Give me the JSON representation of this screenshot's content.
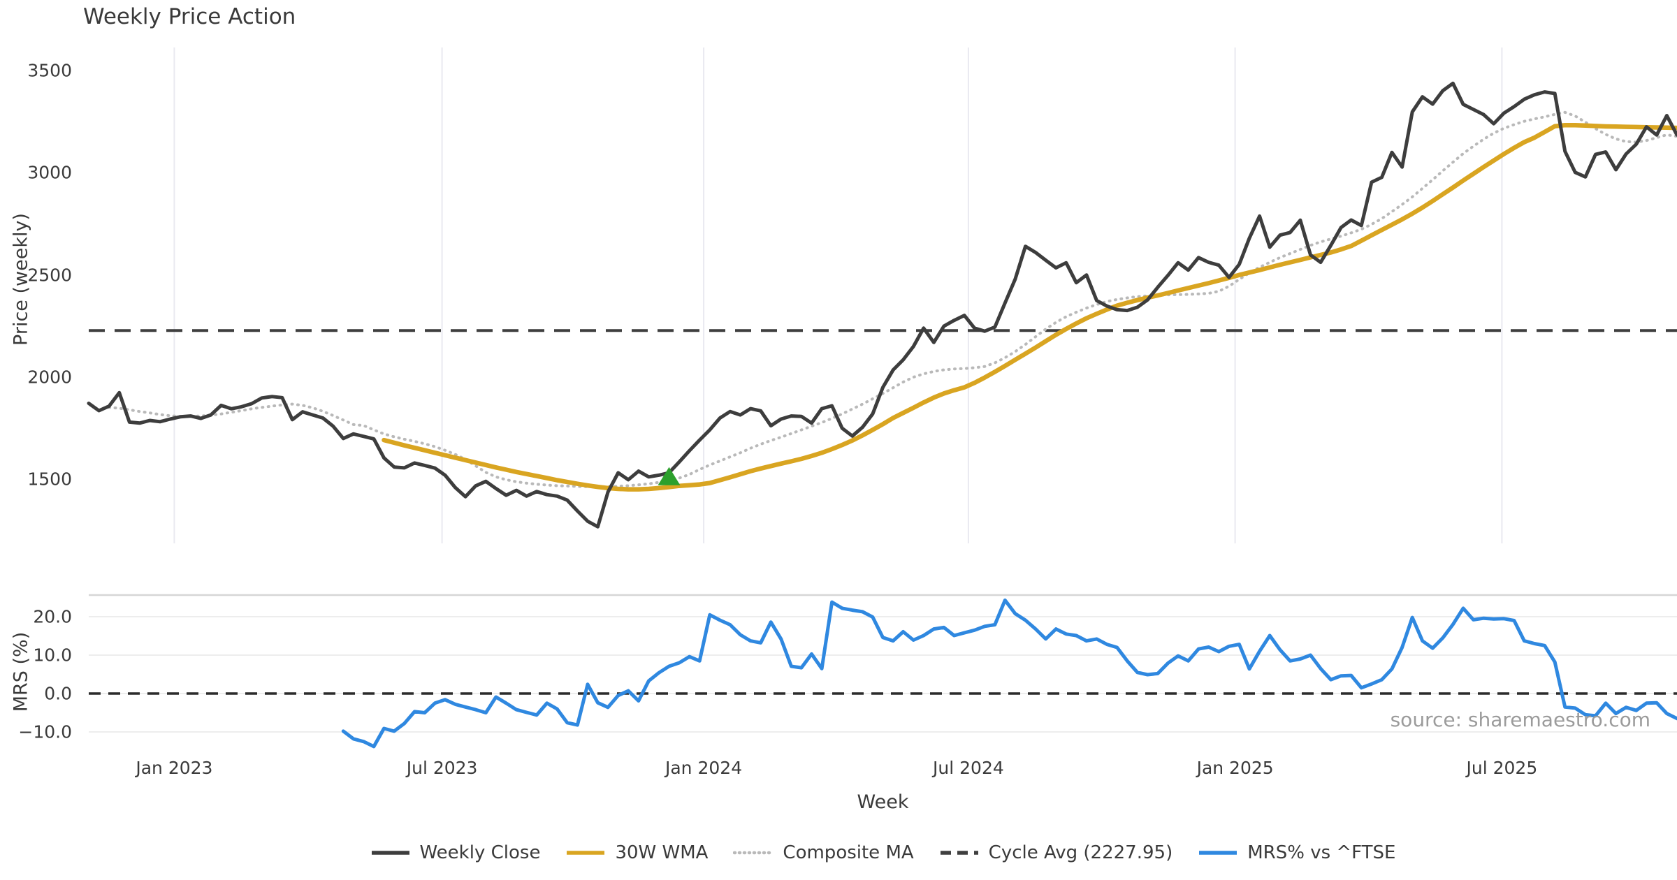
{
  "title": "Weekly Price Action",
  "source_note": "source: sharemaestro.com",
  "colors": {
    "text": "#3a3a3a",
    "close_line": "#3d3d3d",
    "wma_line": "#d9a521",
    "composite_line": "#b9b9b9",
    "cycle_avg_line": "#3f3f3f",
    "mrs_line": "#2f88e0",
    "marker_green": "#2ca02c",
    "zero_line": "#2b2b2b",
    "grid_main": "#e9e9f0",
    "grid_mrs": "#ededed",
    "panel_border": "#d6d6d6",
    "source_text": "#9b9b9b"
  },
  "legend": [
    {
      "label": "Weekly Close",
      "style": "solid",
      "color": "#3d3d3d"
    },
    {
      "label": "30W WMA",
      "style": "solid",
      "color": "#d9a521"
    },
    {
      "label": "Composite MA",
      "style": "dotted",
      "color": "#b9b9b9"
    },
    {
      "label": "Cycle Avg (2227.95)",
      "style": "dashed",
      "color": "#3f3f3f"
    },
    {
      "label": "MRS% vs ^FTSE",
      "style": "solid",
      "color": "#2f88e0"
    }
  ],
  "chart_data": [
    {
      "type": "line",
      "title": "Weekly Price Action",
      "xlabel": "Week",
      "ylabel": "Price (weekly)",
      "freq": "weekly",
      "start_date": "2022-11-04",
      "y_ticks": [
        1500,
        2000,
        2500,
        3000,
        3500
      ],
      "ylim": [
        1185,
        3625
      ],
      "grid": "vertical-only",
      "cycle_avg": 2227.95,
      "x_ticks": [
        {
          "label": "Jan 2023",
          "k": 8.4
        },
        {
          "label": "Jul 2023",
          "k": 34.7
        },
        {
          "label": "Jan 2024",
          "k": 60.4
        },
        {
          "label": "Jul 2024",
          "k": 86.4
        },
        {
          "label": "Jan 2025",
          "k": 112.6
        },
        {
          "label": "Jul 2025",
          "k": 138.8
        }
      ],
      "marker": {
        "symbol": "triangle-up",
        "color": "#2ca02c",
        "k": 57,
        "price": 1512
      },
      "series": [
        {
          "name": "Weekly Close",
          "color": "#3d3d3d",
          "style": "solid",
          "values": [
            1872,
            1836,
            1858,
            1924,
            1780,
            1775,
            1788,
            1782,
            1795,
            1806,
            1810,
            1798,
            1815,
            1862,
            1845,
            1855,
            1870,
            1898,
            1905,
            1900,
            1792,
            1830,
            1815,
            1800,
            1760,
            1700,
            1722,
            1710,
            1698,
            1605,
            1560,
            1556,
            1580,
            1568,
            1555,
            1520,
            1460,
            1415,
            1468,
            1490,
            1455,
            1422,
            1446,
            1418,
            1440,
            1425,
            1418,
            1398,
            1345,
            1295,
            1268,
            1438,
            1532,
            1498,
            1540,
            1512,
            1520,
            1532,
            1585,
            1640,
            1692,
            1742,
            1800,
            1832,
            1815,
            1846,
            1835,
            1762,
            1795,
            1810,
            1808,
            1775,
            1846,
            1860,
            1750,
            1712,
            1755,
            1820,
            1950,
            2035,
            2085,
            2150,
            2240,
            2170,
            2250,
            2278,
            2302,
            2240,
            2225,
            2245,
            2363,
            2480,
            2640,
            2610,
            2572,
            2535,
            2560,
            2462,
            2500,
            2375,
            2348,
            2330,
            2326,
            2342,
            2378,
            2440,
            2498,
            2560,
            2524,
            2585,
            2562,
            2548,
            2488,
            2552,
            2680,
            2788,
            2636,
            2695,
            2708,
            2768,
            2598,
            2562,
            2645,
            2732,
            2769,
            2742,
            2954,
            2978,
            3100,
            3028,
            3298,
            3372,
            3336,
            3402,
            3438,
            3335,
            3310,
            3285,
            3240,
            3292,
            3324,
            3360,
            3382,
            3396,
            3388,
            3105,
            3002,
            2980,
            3090,
            3102,
            3015,
            3092,
            3140,
            3225,
            3185,
            3280,
            3185
          ]
        },
        {
          "name": "30W WMA",
          "color": "#d9a521",
          "style": "solid",
          "values": [
            null,
            null,
            null,
            null,
            null,
            null,
            null,
            null,
            null,
            null,
            null,
            null,
            null,
            null,
            null,
            null,
            null,
            null,
            null,
            null,
            null,
            null,
            null,
            null,
            null,
            null,
            null,
            null,
            null,
            1692,
            1679,
            1666,
            1654,
            1642,
            1630,
            1618,
            1606,
            1594,
            1582,
            1570,
            1558,
            1547,
            1536,
            1526,
            1516,
            1506,
            1496,
            1487,
            1478,
            1470,
            1463,
            1457,
            1453,
            1451,
            1451,
            1453,
            1457,
            1462,
            1468,
            1471,
            1475,
            1482,
            1496,
            1510,
            1525,
            1540,
            1553,
            1565,
            1577,
            1588,
            1600,
            1614,
            1630,
            1648,
            1668,
            1690,
            1715,
            1742,
            1770,
            1800,
            1825,
            1850,
            1876,
            1900,
            1920,
            1936,
            1950,
            1972,
            1998,
            2026,
            2055,
            2085,
            2115,
            2145,
            2176,
            2207,
            2236,
            2263,
            2288,
            2310,
            2331,
            2350,
            2364,
            2377,
            2389,
            2400,
            2412,
            2424,
            2436,
            2448,
            2460,
            2473,
            2486,
            2500,
            2512,
            2524,
            2537,
            2550,
            2562,
            2574,
            2586,
            2598,
            2610,
            2625,
            2642,
            2668,
            2694,
            2720,
            2746,
            2772,
            2800,
            2830,
            2862,
            2895,
            2928,
            2962,
            2995,
            3028,
            3060,
            3092,
            3122,
            3150,
            3172,
            3200,
            3228,
            3233,
            3233,
            3231,
            3229,
            3227,
            3226,
            3225,
            3224,
            3223,
            3222,
            3221,
            3220
          ]
        },
        {
          "name": "Composite MA",
          "color": "#b9b9b9",
          "style": "dotted",
          "values": [
            null,
            null,
            1852,
            1848,
            1840,
            1832,
            1825,
            1817,
            1811,
            1808,
            1808,
            1810,
            1814,
            1820,
            1828,
            1836,
            1845,
            1852,
            1858,
            1864,
            1868,
            1862,
            1850,
            1833,
            1812,
            1790,
            1768,
            1763,
            1742,
            1722,
            1708,
            1696,
            1686,
            1674,
            1660,
            1642,
            1622,
            1598,
            1566,
            1534,
            1512,
            1498,
            1488,
            1481,
            1476,
            1472,
            1469,
            1467,
            1465,
            1464,
            1463,
            1464,
            1466,
            1469,
            1473,
            1478,
            1485,
            1494,
            1506,
            1524,
            1548,
            1570,
            1590,
            1610,
            1630,
            1652,
            1672,
            1690,
            1706,
            1724,
            1742,
            1760,
            1778,
            1798,
            1820,
            1844,
            1868,
            1894,
            1920,
            1948,
            1976,
            2000,
            2016,
            2028,
            2036,
            2040,
            2042,
            2046,
            2052,
            2070,
            2095,
            2125,
            2160,
            2198,
            2235,
            2268,
            2296,
            2318,
            2338,
            2355,
            2370,
            2380,
            2388,
            2394,
            2398,
            2401,
            2403,
            2404,
            2405,
            2407,
            2410,
            2420,
            2445,
            2478,
            2510,
            2538,
            2562,
            2585,
            2605,
            2625,
            2645,
            2662,
            2676,
            2690,
            2706,
            2724,
            2748,
            2776,
            2810,
            2845,
            2882,
            2924,
            2966,
            3010,
            3052,
            3094,
            3130,
            3164,
            3194,
            3218,
            3236,
            3252,
            3264,
            3274,
            3286,
            3296,
            3278,
            3248,
            3216,
            3188,
            3166,
            3153,
            3150,
            3158,
            3172,
            3186,
            3178,
            3162
          ]
        }
      ]
    },
    {
      "type": "line",
      "ylabel": "MRS (%)",
      "y_ticks": [
        20,
        10,
        0,
        -10
      ],
      "y_tick_labels": [
        "20.0",
        "10.0",
        "0.0",
        "−10.0"
      ],
      "ylim": [
        -15.5,
        25.6
      ],
      "zero_dashed_line": 0.0,
      "series": [
        {
          "name": "MRS% vs ^FTSE",
          "color": "#2f88e0",
          "style": "solid",
          "values": [
            null,
            null,
            null,
            null,
            null,
            null,
            null,
            null,
            null,
            null,
            null,
            null,
            null,
            null,
            null,
            null,
            null,
            null,
            null,
            null,
            null,
            null,
            null,
            null,
            null,
            -9.8,
            -11.8,
            -12.5,
            -13.8,
            -9.1,
            -9.8,
            -7.8,
            -4.7,
            -5.0,
            -2.5,
            -1.6,
            -2.8,
            -3.5,
            -4.2,
            -5.0,
            -0.9,
            -2.5,
            -4.2,
            -4.9,
            -5.6,
            -2.5,
            -4.0,
            -7.6,
            -8.2,
            2.4,
            -2.4,
            -3.6,
            -0.5,
            0.7,
            -1.9,
            3.3,
            5.4,
            7.1,
            8.0,
            9.6,
            8.5,
            20.5,
            19.1,
            17.9,
            15.3,
            13.7,
            13.2,
            18.6,
            14.2,
            7.1,
            6.7,
            10.3,
            6.5,
            23.8,
            22.2,
            21.7,
            21.3,
            19.9,
            14.6,
            13.7,
            16.1,
            13.9,
            15.1,
            16.8,
            17.2,
            15.1,
            15.8,
            16.5,
            17.5,
            17.9,
            24.3,
            20.8,
            19.1,
            16.8,
            14.2,
            16.8,
            15.5,
            15.1,
            13.7,
            14.2,
            12.8,
            12.0,
            8.5,
            5.5,
            4.9,
            5.2,
            7.9,
            9.8,
            8.5,
            11.6,
            12.1,
            10.9,
            12.3,
            12.8,
            6.4,
            11.0,
            15.1,
            11.4,
            8.5,
            9.0,
            10.0,
            6.5,
            3.6,
            4.6,
            4.7,
            1.5,
            2.5,
            3.6,
            6.4,
            12.0,
            19.8,
            13.7,
            11.8,
            14.5,
            18.0,
            22.2,
            19.2,
            19.6,
            19.4,
            19.5,
            19.0,
            13.7,
            13.0,
            12.5,
            8.2,
            -3.5,
            -3.8,
            -5.5,
            -5.8,
            -2.5,
            -5.2,
            -3.6,
            -4.4,
            -2.5,
            -2.4,
            -5.2,
            -6.5
          ]
        }
      ]
    }
  ]
}
